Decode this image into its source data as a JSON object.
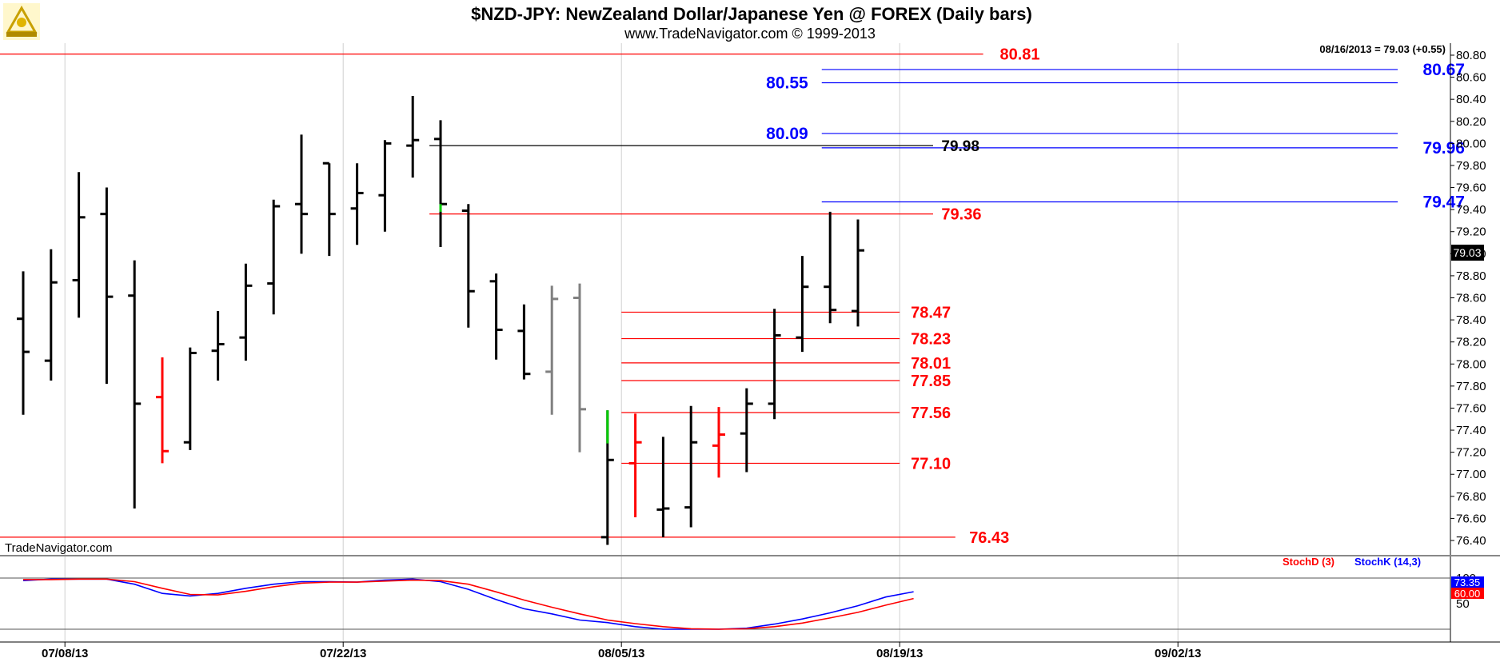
{
  "header": {
    "title": "$NZD-JPY:  NewZealand Dollar/Japanese Yen @ FOREX  (Daily bars)",
    "subtitle": "www.TradeNavigator.com © 1999-2013",
    "logo_icon": "sextant-logo-icon"
  },
  "last_close_label": "08/16/2013 = 79.03 (+0.55)",
  "watermark": "TradeNavigator.com",
  "colors": {
    "bar": "#000000",
    "bar_down": "#ff0000",
    "bar_gray": "#808080",
    "bar_up_green": "#00cc00",
    "red_level": "#ff0000",
    "blue_level": "#0000ff",
    "stoch_d": "#ff0000",
    "stoch_k": "#0000ff"
  },
  "chart_data": [
    {
      "type": "bar",
      "subtype": "ohlc",
      "title": "$NZD-JPY:  NewZealand Dollar/Japanese Yen @ FOREX  (Daily bars)",
      "ylim": [
        76.3,
        80.95
      ],
      "y_ticks": [
        "80.80",
        "80.60",
        "80.40",
        "80.20",
        "80.00",
        "79.80",
        "79.60",
        "79.40",
        "79.20",
        "79.00",
        "78.80",
        "78.60",
        "78.40",
        "78.20",
        "78.00",
        "77.80",
        "77.60",
        "77.40",
        "77.20",
        "77.00",
        "76.80",
        "76.60",
        "76.40"
      ],
      "x_tick_labels": [
        {
          "label": "07/08/13",
          "index": 1.5
        },
        {
          "label": "07/22/13",
          "index": 11.5
        },
        {
          "label": "08/05/13",
          "index": 21.5
        },
        {
          "label": "08/19/13",
          "index": 31.5
        },
        {
          "label": "09/02/13",
          "index": 41.5
        }
      ],
      "last_price": "79.03",
      "bars": [
        {
          "o": 78.41,
          "h": 78.84,
          "l": 77.54,
          "c": 78.11,
          "color": "bar"
        },
        {
          "o": 78.03,
          "h": 79.04,
          "l": 77.85,
          "c": 78.74,
          "color": "bar"
        },
        {
          "o": 78.76,
          "h": 79.74,
          "l": 78.42,
          "c": 79.33,
          "color": "bar"
        },
        {
          "o": 79.36,
          "h": 79.6,
          "l": 77.82,
          "c": 78.61,
          "color": "bar"
        },
        {
          "o": 78.62,
          "h": 78.94,
          "l": 76.69,
          "c": 77.64,
          "color": "bar"
        },
        {
          "o": 77.7,
          "h": 78.06,
          "l": 77.1,
          "c": 77.21,
          "color": "bar_down"
        },
        {
          "o": 77.29,
          "h": 78.15,
          "l": 77.22,
          "c": 78.1,
          "color": "bar"
        },
        {
          "o": 78.12,
          "h": 78.48,
          "l": 77.85,
          "c": 78.18,
          "color": "bar"
        },
        {
          "o": 78.24,
          "h": 78.91,
          "l": 78.03,
          "c": 78.71,
          "color": "bar"
        },
        {
          "o": 78.73,
          "h": 79.49,
          "l": 78.45,
          "c": 79.43,
          "color": "bar"
        },
        {
          "o": 79.45,
          "h": 80.08,
          "l": 79.0,
          "c": 79.36,
          "color": "bar"
        },
        {
          "o": 79.82,
          "h": 79.82,
          "l": 78.98,
          "c": 79.36,
          "color": "bar"
        },
        {
          "o": 79.41,
          "h": 79.82,
          "l": 79.08,
          "c": 79.55,
          "color": "bar"
        },
        {
          "o": 79.53,
          "h": 80.03,
          "l": 79.2,
          "c": 80.0,
          "color": "bar"
        },
        {
          "o": 79.98,
          "h": 80.43,
          "l": 79.69,
          "c": 80.03,
          "color": "bar"
        },
        {
          "o": 80.04,
          "h": 80.21,
          "l": 79.06,
          "c": 79.45,
          "color": "bar"
        },
        {
          "o": 79.39,
          "h": 79.45,
          "l": 78.33,
          "c": 78.66,
          "color": "bar"
        },
        {
          "o": 78.75,
          "h": 78.82,
          "l": 78.04,
          "c": 78.31,
          "color": "bar"
        },
        {
          "o": 78.3,
          "h": 78.54,
          "l": 77.86,
          "c": 77.91,
          "color": "bar"
        },
        {
          "o": 77.93,
          "h": 78.71,
          "l": 77.54,
          "c": 78.59,
          "color": "bar_gray"
        },
        {
          "o": 78.6,
          "h": 78.73,
          "l": 77.2,
          "c": 77.59,
          "color": "bar_gray"
        },
        {
          "o": 76.43,
          "h": 77.58,
          "l": 76.36,
          "c": 77.13,
          "color": "bar"
        },
        {
          "o": 77.1,
          "h": 77.55,
          "l": 76.61,
          "c": 77.29,
          "color": "bar_down"
        },
        {
          "o": 76.68,
          "h": 77.34,
          "l": 76.43,
          "c": 76.69,
          "color": "bar"
        },
        {
          "o": 76.7,
          "h": 77.62,
          "l": 76.52,
          "c": 77.29,
          "color": "bar"
        },
        {
          "o": 77.26,
          "h": 77.61,
          "l": 76.97,
          "c": 77.36,
          "color": "bar_down"
        },
        {
          "o": 77.37,
          "h": 77.78,
          "l": 77.02,
          "c": 77.64,
          "color": "bar"
        },
        {
          "o": 77.64,
          "h": 78.5,
          "l": 77.5,
          "c": 78.26,
          "color": "bar"
        },
        {
          "o": 78.24,
          "h": 78.98,
          "l": 78.11,
          "c": 78.7,
          "color": "bar"
        },
        {
          "o": 78.7,
          "h": 79.38,
          "l": 78.37,
          "c": 78.49,
          "color": "bar"
        },
        {
          "o": 78.48,
          "h": 79.31,
          "l": 78.34,
          "c": 79.03,
          "color": "bar"
        }
      ],
      "green_marks": [
        {
          "index": 15,
          "from": 79.38,
          "to": 79.45
        },
        {
          "index": 21,
          "from": 77.28,
          "to": 77.58
        }
      ],
      "levels": [
        {
          "value": 80.81,
          "label": "80.81",
          "color": "red_level",
          "from_index": -1,
          "to_index": 34.5,
          "label_index": 35.1
        },
        {
          "value": 80.67,
          "label": "80.67",
          "color": "blue_level",
          "from_index": 28.7,
          "to_index": 49.4,
          "label_index": 50.3
        },
        {
          "value": 80.55,
          "label": "80.55",
          "color": "blue_level",
          "from_index": 28.7,
          "to_index": 49.4,
          "label_index": 26.7
        },
        {
          "value": 80.09,
          "label": "80.09",
          "color": "blue_level",
          "from_index": 28.7,
          "to_index": 49.4,
          "label_index": 26.7
        },
        {
          "value": 79.96,
          "label": "79.96",
          "color": "blue_level",
          "from_index": 28.7,
          "to_index": 49.4,
          "label_index": 50.3
        },
        {
          "value": 79.47,
          "label": "79.47",
          "color": "blue_level",
          "from_index": 28.7,
          "to_index": 49.4,
          "label_index": 50.3
        },
        {
          "value": 79.98,
          "label": "79.98",
          "color": "bar",
          "from_index": 14.6,
          "to_index": 32.7,
          "label_index": 33.0
        },
        {
          "value": 79.36,
          "label": "79.36",
          "color": "red_level",
          "from_index": 14.6,
          "to_index": 32.7,
          "label_index": 33.0
        },
        {
          "value": 78.47,
          "label": "78.47",
          "color": "red_level",
          "from_index": 21.5,
          "to_index": 31.5,
          "label_index": 31.9
        },
        {
          "value": 78.23,
          "label": "78.23",
          "color": "red_level",
          "from_index": 21.5,
          "to_index": 31.5,
          "label_index": 31.9
        },
        {
          "value": 78.01,
          "label": "78.01",
          "color": "red_level",
          "from_index": 21.5,
          "to_index": 31.5,
          "label_index": 31.9
        },
        {
          "value": 77.85,
          "label": "77.85",
          "color": "red_level",
          "from_index": 21.5,
          "to_index": 31.5,
          "label_index": 31.9
        },
        {
          "value": 77.56,
          "label": "77.56",
          "color": "red_level",
          "from_index": 21.5,
          "to_index": 31.5,
          "label_index": 31.9
        },
        {
          "value": 77.1,
          "label": "77.10",
          "color": "red_level",
          "from_index": 21.5,
          "to_index": 31.5,
          "label_index": 31.9
        },
        {
          "value": 76.43,
          "label": "76.43",
          "color": "red_level",
          "from_index": -1,
          "to_index": 33.5,
          "label_index": 34.0
        }
      ]
    },
    {
      "type": "line",
      "title": "",
      "ylim": [
        0,
        100
      ],
      "y_ticks": [
        "100",
        "50"
      ],
      "legend": [
        {
          "name": "StochD (3)",
          "color": "stoch_d"
        },
        {
          "name": "StochK (14,3)",
          "color": "stoch_k"
        }
      ],
      "legend_placement": "top-right",
      "last_values": {
        "k": "73.35",
        "d": "60.00"
      },
      "series": [
        {
          "name": "StochK (14,3)",
          "color": "stoch_k",
          "values": [
            95,
            98,
            98,
            98,
            88,
            70,
            65,
            70,
            80,
            88,
            93,
            93,
            92,
            96,
            98,
            93,
            78,
            58,
            40,
            30,
            18,
            13,
            5,
            0,
            0,
            0,
            2,
            10,
            20,
            32,
            46,
            63,
            73.35
          ]
        },
        {
          "name": "StochD (3)",
          "color": "stoch_d",
          "values": [
            97,
            97,
            98,
            98,
            93,
            80,
            68,
            67,
            74,
            83,
            90,
            92,
            92,
            94,
            96,
            95,
            88,
            73,
            57,
            43,
            30,
            18,
            11,
            5,
            1,
            0,
            1,
            5,
            12,
            22,
            33,
            47,
            60.0
          ]
        }
      ]
    }
  ]
}
